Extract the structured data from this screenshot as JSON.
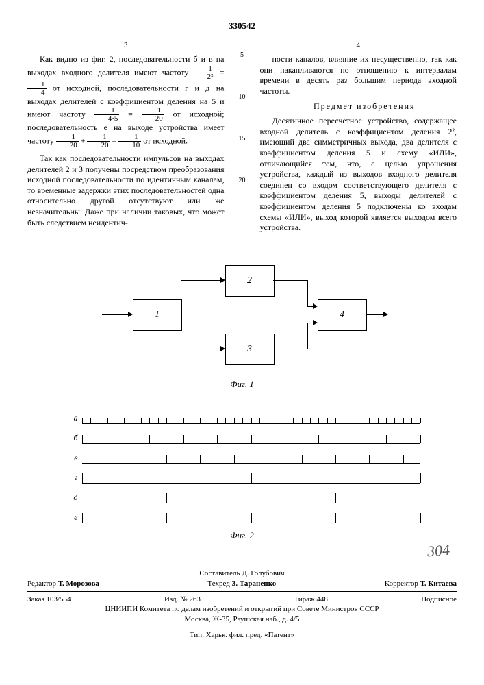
{
  "doc_number": "330542",
  "left_page_num": "3",
  "right_page_num": "4",
  "left_col": {
    "p1a": "Как видно из фиг. 2, последовательности б и в на выходах входного делителя имеют частоту ",
    "p1b": " от исходной, последовательности г и д на выходах делителей с коэффициентом деления на 5 и имеют частоту ",
    "p1c": " от исходной; последовательность е на выходе устройства имеет частоту ",
    "p1d": " от исходной.",
    "frac1_num": "1",
    "frac1_den": "2²",
    "frac1_eqn": "1",
    "frac1_eqd": "4",
    "frac2_num": "1",
    "frac2_den": "4·5",
    "frac2_eqn": "1",
    "frac2_eqd": "20",
    "frac3_num": "1",
    "frac3_den": "20",
    "frac3_p": "1",
    "frac3_pd": "20",
    "frac3_eqn": "1",
    "frac3_eqd": "10",
    "p2": "Так как последовательности импульсов на выходах делителей 2 и 3 получены посредством преобразования исходной последовательности по идентичным каналам, то временные задержки этих последовательностей одна относительно другой отсутствуют или же незначительны. Даже при наличии таковых, что может быть следствием неидентич-"
  },
  "right_col": {
    "p1": "ности каналов, влияние их несущественно, так как они накапливаются по отношению к интервалам времени в десять раз большим периода входной частоты.",
    "title": "Предмет изобретения",
    "p2": "Десятичное пересчетное устройство, содержащее входной делитель с коэффициентом деления 2², имеющий два симметричных выхода, два делителя с коэффициентом деления 5 и схему «ИЛИ», отличающийся тем, что, с целью упрощения устройства, каждый из выходов входного делителя соединен со входом соответствующего делителя с коэффициентом деления 5, выходы делителей с коэффициентом деления 5 подключены ко входам схемы «ИЛИ», выход которой является выходом всего устройства."
  },
  "line_nums": [
    "5",
    "10",
    "15",
    "20"
  ],
  "fig1": {
    "caption": "Фиг. 1",
    "blocks": {
      "b1": "1",
      "b2": "2",
      "b3": "3",
      "b4": "4"
    }
  },
  "fig2": {
    "caption": "Фиг. 2",
    "rows": [
      {
        "label": "а",
        "count": 40,
        "height": 8
      },
      {
        "label": "б",
        "count": 10,
        "height": 12
      },
      {
        "label": "в",
        "count": 10,
        "height": 12,
        "offset": 2
      },
      {
        "label": "г",
        "count": 2,
        "height": 14
      },
      {
        "label": "д",
        "count": 2,
        "height": 14,
        "offset": 10
      },
      {
        "label": "е",
        "count": 4,
        "height": 14
      }
    ],
    "width_units": 40
  },
  "handwritten": "304",
  "footer": {
    "sostavitel": "Составитель Д. Голубович",
    "redaktor_lbl": "Редактор",
    "redaktor": "Т. Морозова",
    "tehred_lbl": "Техред",
    "tehred": "З. Тараненко",
    "korrektor_lbl": "Корректор",
    "korrektor": "Т. Китаева",
    "zakaz": "Заказ 103/554",
    "izd": "Изд. № 263",
    "tirazh": "Тираж 448",
    "podpisnoe": "Подписное",
    "org": "ЦНИИПИ Комитета по делам изобретений и открытий при Совете Министров СССР",
    "addr": "Москва, Ж-35, Раушская наб., д. 4/5",
    "tip": "Тип. Харьк. фил. пред. «Патент»"
  }
}
